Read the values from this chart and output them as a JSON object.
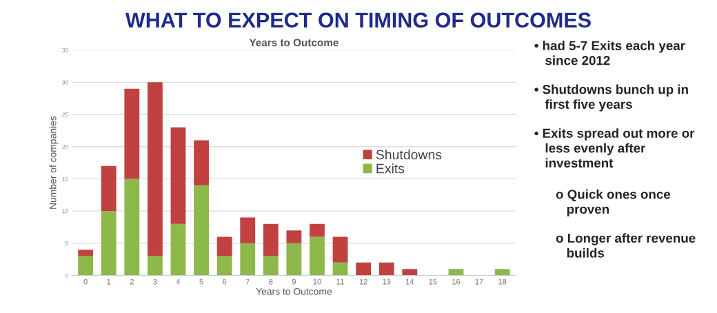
{
  "chart_data": {
    "type": "bar",
    "stacked": true,
    "title": "WHAT TO EXPECT ON TIMING OF OUTCOMES",
    "subtitle": "Years to Outcome",
    "xlabel": "Years to Outcome",
    "ylabel": "Number of companies",
    "categories": [
      "0",
      "1",
      "2",
      "3",
      "4",
      "5",
      "6",
      "7",
      "8",
      "9",
      "10",
      "11",
      "12",
      "13",
      "14",
      "15",
      "16",
      "17",
      "18"
    ],
    "series": [
      {
        "name": "Exits",
        "color": "#8db84a",
        "values": [
          3,
          10,
          15,
          3,
          8,
          14,
          3,
          5,
          3,
          5,
          6,
          2,
          0,
          0,
          0,
          0,
          1,
          0,
          1
        ]
      },
      {
        "name": "Shutdowns",
        "color": "#c0413f",
        "values": [
          1,
          7,
          14,
          27,
          15,
          7,
          3,
          4,
          5,
          2,
          2,
          4,
          2,
          2,
          1,
          0,
          0,
          0,
          0
        ]
      }
    ],
    "ylim": [
      0,
      35
    ],
    "yticks": [
      0,
      5,
      10,
      15,
      20,
      25,
      30,
      35
    ],
    "grid": "y",
    "legend": "right",
    "annotations": [
      "• had 5-7 Exits each year since 2012",
      "• Shutdowns bunch up in first five years",
      "• Exits spread out more or less evenly after investment",
      "o Quick ones once proven",
      "o Longer after revenue builds"
    ]
  }
}
